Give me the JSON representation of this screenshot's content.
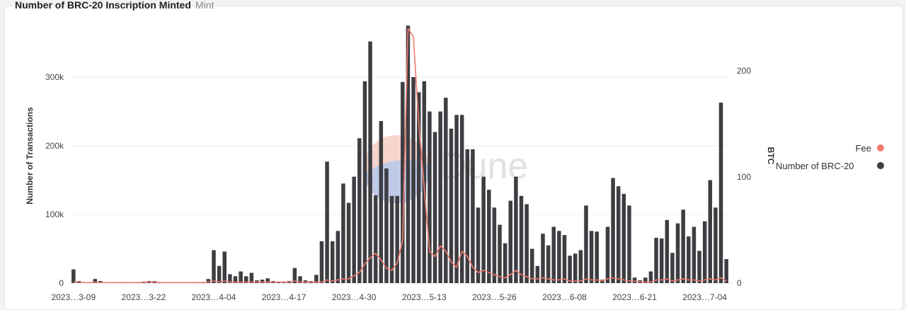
{
  "title": {
    "main": "Number of BRC-20 Inscription Minted",
    "sub": "Mint"
  },
  "watermark": "Dune",
  "chart_data": {
    "type": "bar",
    "title": "Number of BRC-20 Inscription Minted",
    "subtitle": "Mint",
    "ylabel": "Number of Transactions",
    "y2label": "BTC",
    "ylim": [
      0,
      400000
    ],
    "y2lim": [
      0,
      240
    ],
    "y_ticks": [
      {
        "value": 0,
        "label": "0"
      },
      {
        "value": 100000,
        "label": "100k"
      },
      {
        "value": 200000,
        "label": "200k"
      },
      {
        "value": 300000,
        "label": "300k"
      }
    ],
    "y2_ticks": [
      {
        "value": 0,
        "label": "0"
      },
      {
        "value": 100,
        "label": "100"
      },
      {
        "value": 200,
        "label": "200"
      }
    ],
    "x_ticks": [
      {
        "index": 0,
        "label": "2023…3-09"
      },
      {
        "index": 13,
        "label": "2023…3-22"
      },
      {
        "index": 26,
        "label": "2023…4-04"
      },
      {
        "index": 39,
        "label": "2023…4-17"
      },
      {
        "index": 52,
        "label": "2023…4-30"
      },
      {
        "index": 65,
        "label": "2023…5-13"
      },
      {
        "index": 78,
        "label": "2023…5-26"
      },
      {
        "index": 91,
        "label": "2023…6-08"
      },
      {
        "index": 104,
        "label": "2023…6-21"
      },
      {
        "index": 117,
        "label": "2023…7-04"
      }
    ],
    "grid": true,
    "legend_position": "right",
    "colors": {
      "bars": "#3d3d42",
      "fee": "#f07a6e"
    },
    "series": [
      {
        "name": "Number of BRC-20",
        "type": "bar",
        "axis": "left",
        "values": [
          20000,
          3000,
          1500,
          1000,
          6000,
          3000,
          1000,
          1000,
          500,
          500,
          500,
          500,
          500,
          2000,
          3000,
          3000,
          500,
          500,
          500,
          500,
          500,
          500,
          500,
          500,
          500,
          6000,
          48000,
          25000,
          46000,
          13000,
          10000,
          17000,
          10000,
          15000,
          4000,
          5000,
          7000,
          3000,
          2000,
          2000,
          3000,
          22000,
          10000,
          4000,
          3000,
          12000,
          61000,
          177000,
          61000,
          76000,
          145000,
          117000,
          155000,
          211000,
          294000,
          352000,
          128000,
          236000,
          167000,
          127000,
          127000,
          293000,
          375000,
          300000,
          278000,
          294000,
          250000,
          220000,
          250000,
          270000,
          225000,
          245000,
          245000,
          195000,
          195000,
          110000,
          155000,
          136000,
          110000,
          85000,
          58000,
          120000,
          155000,
          127000,
          115000,
          50000,
          25000,
          72000,
          55000,
          82000,
          76000,
          70000,
          40000,
          43000,
          48000,
          113000,
          76000,
          75000,
          5000,
          82000,
          153000,
          141000,
          130000,
          113000,
          8000,
          4000,
          8000,
          17000,
          66000,
          65000,
          92000,
          44000,
          87000,
          107000,
          68000,
          82000,
          47000,
          90000,
          150000,
          110000,
          263000,
          35000
        ]
      },
      {
        "name": "Fee",
        "type": "line",
        "axis": "right",
        "values": [
          1,
          1,
          0.5,
          0.5,
          1,
          0.5,
          0.5,
          0.5,
          0.5,
          0.5,
          0.5,
          0.5,
          0.5,
          1,
          1,
          1,
          0.5,
          0.5,
          0.5,
          0.5,
          0.5,
          0.5,
          0.5,
          0.5,
          0.5,
          1,
          2,
          1,
          2,
          1,
          1,
          1,
          1,
          1,
          1,
          1,
          1,
          1,
          1,
          1,
          1,
          2,
          1,
          1,
          1,
          1,
          1,
          3,
          2,
          3,
          4,
          4,
          7,
          10,
          18,
          24,
          28,
          22,
          14,
          12,
          19,
          40,
          240,
          232,
          150,
          90,
          30,
          25,
          35,
          30,
          20,
          15,
          30,
          25,
          15,
          10,
          12,
          10,
          8,
          6,
          5,
          8,
          12,
          8,
          6,
          4,
          4,
          5,
          4,
          3,
          3,
          4,
          2,
          2,
          2,
          4,
          3,
          3,
          2,
          4,
          5,
          4,
          3,
          2,
          2,
          1,
          1,
          1,
          3,
          3,
          4,
          2,
          3,
          4,
          3,
          3,
          2,
          3,
          4,
          3,
          5,
          2
        ]
      }
    ]
  }
}
